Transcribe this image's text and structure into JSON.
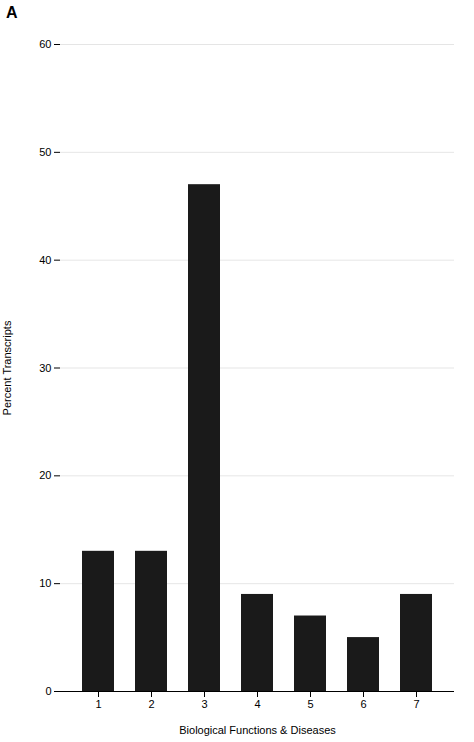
{
  "chart_data": {
    "type": "bar",
    "annotations": [
      "A"
    ],
    "xlabel": "Biological Functions & Diseases",
    "ylabel": "Percent Transcripts",
    "categories": [
      "1",
      "2",
      "3",
      "4",
      "5",
      "6",
      "7"
    ],
    "values": [
      13,
      13,
      47,
      9,
      7,
      5,
      9
    ],
    "color": "#1a1a1a",
    "ylim": [
      0,
      60
    ],
    "yticks": [
      0,
      10,
      20,
      30,
      40,
      50,
      60
    ],
    "grid": true
  }
}
